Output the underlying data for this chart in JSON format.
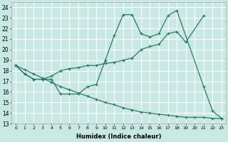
{
  "xlabel": "Humidex (Indice chaleur)",
  "xlim": [
    -0.5,
    23.5
  ],
  "ylim": [
    13,
    24.5
  ],
  "yticks": [
    13,
    14,
    15,
    16,
    17,
    18,
    19,
    20,
    21,
    22,
    23,
    24
  ],
  "xticks": [
    0,
    1,
    2,
    3,
    4,
    5,
    6,
    7,
    8,
    9,
    10,
    11,
    12,
    13,
    14,
    15,
    16,
    17,
    18,
    19,
    20,
    21,
    22,
    23
  ],
  "bg_color": "#c8e8e4",
  "grid_color": "#ffffff",
  "line_color": "#2a7a6a",
  "line1_x": [
    0,
    1,
    2,
    3,
    4,
    5,
    6,
    7,
    8,
    9,
    10,
    11,
    12,
    13,
    14,
    15,
    16,
    17,
    18,
    21,
    22,
    23
  ],
  "line1_y": [
    18.5,
    17.7,
    17.2,
    17.2,
    17.2,
    15.8,
    15.8,
    15.8,
    16.5,
    16.7,
    19.0,
    21.3,
    23.3,
    23.3,
    21.5,
    21.2,
    21.5,
    23.2,
    23.7,
    16.5,
    14.2,
    13.5
  ],
  "line2_x": [
    0,
    1,
    2,
    3,
    4,
    5,
    6,
    7,
    8,
    9,
    10,
    11,
    12,
    13,
    14,
    15,
    16,
    17,
    18,
    19,
    21
  ],
  "line2_y": [
    18.5,
    17.7,
    17.2,
    17.2,
    17.5,
    18.0,
    18.2,
    18.3,
    18.5,
    18.5,
    18.7,
    18.8,
    19.0,
    19.2,
    20.0,
    20.3,
    20.5,
    21.5,
    21.7,
    20.7,
    23.2
  ],
  "line3_x": [
    0,
    1,
    2,
    3,
    4,
    5,
    6,
    7,
    8,
    9,
    10,
    11,
    12,
    13,
    14,
    15,
    16,
    17,
    18,
    19,
    20,
    21,
    22,
    23
  ],
  "line3_y": [
    18.5,
    18.1,
    17.7,
    17.3,
    16.9,
    16.5,
    16.2,
    15.9,
    15.6,
    15.3,
    15.0,
    14.8,
    14.5,
    14.3,
    14.1,
    14.0,
    13.9,
    13.8,
    13.7,
    13.6,
    13.6,
    13.6,
    13.5,
    13.5
  ]
}
